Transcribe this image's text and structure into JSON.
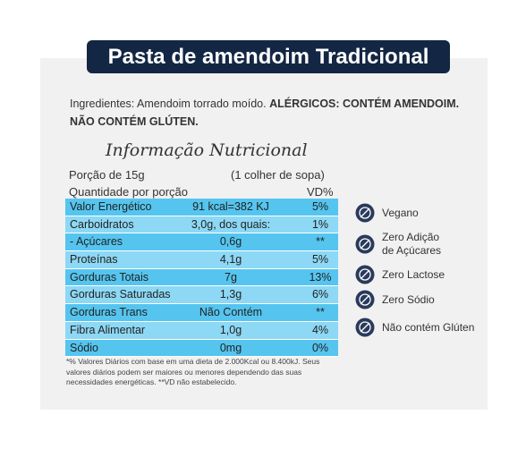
{
  "title": "Pasta de amendoim Tradicional",
  "ingredients": {
    "text": "Ingredientes: Amendoim torrado moído.",
    "allergens": [
      "ALÉRGICOS: CONTÉM AMENDOIM.",
      "NÃO CONTÉM GLÚTEN."
    ]
  },
  "nutrition": {
    "heading": "Informação Nutricional",
    "serving": {
      "label": "Porção de 15g",
      "measure": "(1 colher de sopa)"
    },
    "header": {
      "quantity": "Quantidade por porção",
      "dv": "VD%"
    },
    "rows": [
      [
        "Valor Energético",
        "91 kcal=382 KJ",
        "5%"
      ],
      [
        "Carboidratos",
        "3,0g, dos quais:",
        "1%"
      ],
      [
        "- Açúcares",
        "0,6g",
        "**"
      ],
      [
        "Proteínas",
        "4,1g",
        "5%"
      ],
      [
        "Gorduras Totais",
        "7g",
        "13%"
      ],
      [
        "Gorduras Saturadas",
        "1,3g",
        "6%"
      ],
      [
        "Gorduras Trans",
        "Não Contém",
        "**"
      ],
      [
        "Fibra Alimentar",
        "1,0g",
        "4%"
      ],
      [
        "Sódio",
        "0mg",
        "0%"
      ]
    ],
    "footnote": [
      "*% Valores Diários com base em uma dieta de 2.000Kcal ou 8.400kJ. Seus",
      "valores diários podem ser maiores ou menores dependendo das suas",
      "necessidades energéticas. **VD não estabelecido."
    ]
  },
  "badges": [
    {
      "lines": [
        "Vegano"
      ]
    },
    {
      "lines": [
        "Zero Adição",
        "de Açúcares"
      ]
    },
    {
      "lines": [
        "Zero Lactose"
      ]
    },
    {
      "lines": [
        "Zero Sódio"
      ]
    },
    {
      "lines": [
        "Não contém Glúten"
      ]
    }
  ]
}
